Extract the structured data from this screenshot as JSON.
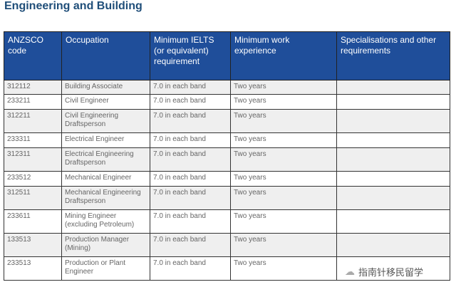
{
  "title": "Engineering and Building",
  "headers": [
    "ANZSCO code",
    "Occupation",
    "Minimum IELTS (or equivalent) requirement",
    "Minimum work experience",
    "Specialisations and other requirements"
  ],
  "rows": [
    [
      "312112",
      "Building Associate",
      "7.0 in each band",
      "Two years",
      ""
    ],
    [
      "233211",
      "Civil Engineer",
      "7.0 in each band",
      "Two years",
      ""
    ],
    [
      "312211",
      "Civil Engineering Draftsperson",
      "7.0 in each band",
      "Two years",
      ""
    ],
    [
      "233311",
      "Electrical Engineer",
      "7.0 in each band",
      "Two years",
      ""
    ],
    [
      "312311",
      "Electrical Engineering Draftsperson",
      "7.0 in each band",
      "Two years",
      ""
    ],
    [
      "233512",
      "Mechanical Engineer",
      "7.0 in each band",
      "Two years",
      ""
    ],
    [
      "312511",
      "Mechanical Engineering Draftsperson",
      "7.0 in each band",
      "Two years",
      ""
    ],
    [
      "233611",
      "Mining Engineer (excluding Petroleum)",
      "7.0 in each band",
      "Two years",
      ""
    ],
    [
      "133513",
      "Production Manager (Mining)",
      "7.0 in each band",
      "Two years",
      ""
    ],
    [
      "233513",
      "Production or Plant Engineer",
      "7.0 in each band",
      "Two years",
      ""
    ]
  ],
  "watermark": "指南针移民留学"
}
